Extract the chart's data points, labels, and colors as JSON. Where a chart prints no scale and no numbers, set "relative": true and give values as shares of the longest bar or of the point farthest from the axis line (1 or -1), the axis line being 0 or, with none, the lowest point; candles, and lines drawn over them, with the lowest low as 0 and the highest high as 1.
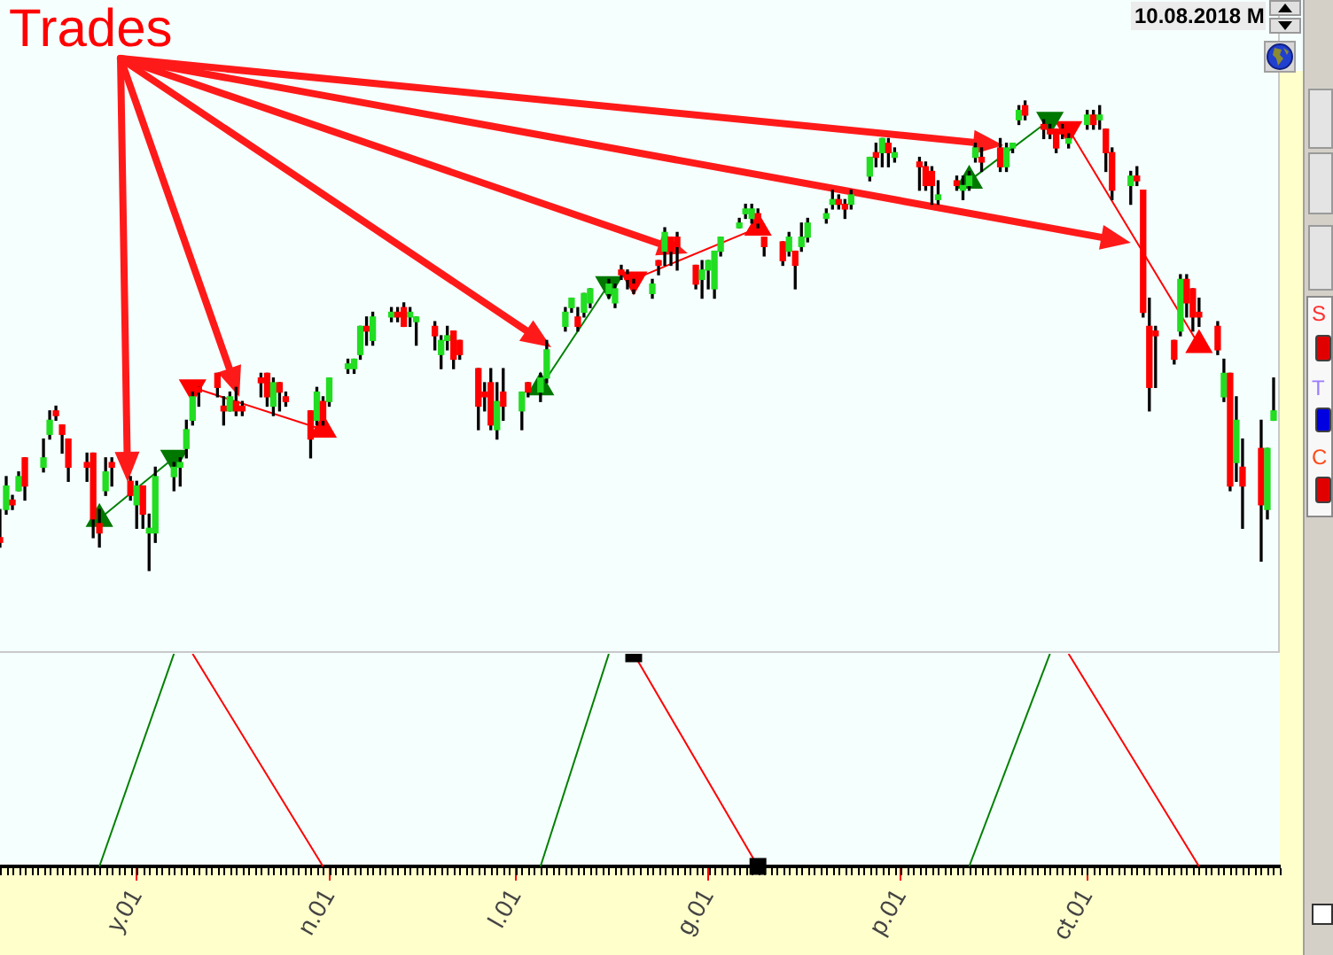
{
  "chart_data": [
    {
      "type": "candlestick",
      "relative": true,
      "xlim": [
        "--04-09",
        "--11-01"
      ],
      "tick_labels": false,
      "annotations": [
        "Trades",
        "10.08.2018 M",
        "S",
        "T",
        "C"
      ],
      "x": [
        "--04-09",
        "--04-10",
        "--04-11",
        "--04-12",
        "--04-13",
        "--04-16",
        "--04-17",
        "--04-18",
        "--04-19",
        "--04-20",
        "--04-23",
        "--04-24",
        "--04-25",
        "--04-26",
        "--04-27",
        "--04-30",
        "--05-01",
        "--05-02",
        "--05-03",
        "--05-04",
        "--05-07",
        "--05-08",
        "--05-09",
        "--05-10",
        "--05-11",
        "--05-14",
        "--05-15",
        "--05-16",
        "--05-17",
        "--05-18",
        "--05-21",
        "--05-22",
        "--05-23",
        "--05-24",
        "--05-25",
        "--05-29",
        "--05-30",
        "--05-31",
        "--06-01",
        "--06-04",
        "--06-05",
        "--06-06",
        "--06-07",
        "--06-08",
        "--06-11",
        "--06-12",
        "--06-13",
        "--06-14",
        "--06-15",
        "--06-18",
        "--06-19",
        "--06-20",
        "--06-21",
        "--06-22",
        "--06-25",
        "--06-26",
        "--06-27",
        "--06-28",
        "--06-29",
        "--07-02",
        "--07-03",
        "--07-05",
        "--07-06",
        "--07-09",
        "--07-10",
        "--07-11",
        "--07-12",
        "--07-13",
        "--07-16",
        "--07-17",
        "--07-18",
        "--07-19",
        "--07-20",
        "--07-23",
        "--07-24",
        "--07-25",
        "--07-26",
        "--07-27",
        "--07-30",
        "--07-31",
        "--08-01",
        "--08-02",
        "--08-03",
        "--08-06",
        "--08-07",
        "--08-08",
        "--08-09",
        "--08-10",
        "--08-13",
        "--08-14",
        "--08-15",
        "--08-16",
        "--08-17",
        "--08-20",
        "--08-21",
        "--08-22",
        "--08-23",
        "--08-24",
        "--08-27",
        "--08-28",
        "--08-29",
        "--08-30",
        "--08-31",
        "--09-04",
        "--09-05",
        "--09-06",
        "--09-07",
        "--09-10",
        "--09-11",
        "--09-12",
        "--09-13",
        "--09-14",
        "--09-17",
        "--09-18",
        "--09-19",
        "--09-20",
        "--09-21",
        "--09-24",
        "--09-25",
        "--09-26",
        "--09-27",
        "--09-28",
        "--10-01",
        "--10-02",
        "--10-03",
        "--10-04",
        "--10-05",
        "--10-08",
        "--10-09",
        "--10-10",
        "--10-11",
        "--10-12",
        "--10-15",
        "--10-16",
        "--10-17",
        "--10-18",
        "--10-19",
        "--10-22",
        "--10-23",
        "--10-24",
        "--10-25",
        "--10-26",
        "--10-29",
        "--10-30",
        "--10-31"
      ],
      "ohlc": [
        [
          0.07,
          0.13,
          0.05,
          0.06
        ],
        [
          0.13,
          0.2,
          0.12,
          0.18
        ],
        [
          0.15,
          0.16,
          0.13,
          0.14
        ],
        [
          0.17,
          0.21,
          0.17,
          0.2
        ],
        [
          0.24,
          0.24,
          0.15,
          0.18
        ],
        [
          0.22,
          0.28,
          0.21,
          0.24
        ],
        [
          0.29,
          0.34,
          0.28,
          0.32
        ],
        [
          0.34,
          0.35,
          0.32,
          0.33
        ],
        [
          0.31,
          0.31,
          0.25,
          0.29
        ],
        [
          0.28,
          0.28,
          0.19,
          0.22
        ],
        [
          0.23,
          0.25,
          0.19,
          0.22
        ],
        [
          0.25,
          0.25,
          0.07,
          0.11
        ],
        [
          0.1,
          0.13,
          0.05,
          0.08
        ],
        [
          0.17,
          0.24,
          0.16,
          0.21
        ],
        [
          0.23,
          0.24,
          0.18,
          0.22
        ],
        [
          0.19,
          0.2,
          0.15,
          0.16
        ],
        [
          0.14,
          0.19,
          0.09,
          0.18
        ],
        [
          0.18,
          0.18,
          0.09,
          0.12
        ],
        [
          0.08,
          0.12,
          0,
          0.09
        ],
        [
          0.08,
          0.22,
          0.06,
          0.2
        ],
        [
          0.2,
          0.23,
          0.17,
          0.22
        ],
        [
          0.22,
          0.24,
          0.18,
          0.23
        ],
        [
          0.26,
          0.32,
          0.24,
          0.3
        ],
        [
          0.32,
          0.38,
          0.31,
          0.37
        ],
        [
          0.39,
          0.39,
          0.35,
          0.38
        ],
        [
          0.42,
          0.42,
          0.37,
          0.39
        ],
        [
          0.35,
          0.37,
          0.31,
          0.34
        ],
        [
          0.34,
          0.38,
          0.34,
          0.37
        ],
        [
          0.36,
          0.39,
          0.33,
          0.34
        ],
        [
          0.35,
          0.36,
          0.33,
          0.34
        ],
        [
          0.41,
          0.42,
          0.37,
          0.4
        ],
        [
          0.42,
          0.42,
          0.35,
          0.37
        ],
        [
          0.35,
          0.41,
          0.33,
          0.4
        ],
        [
          0.4,
          0.4,
          0.34,
          0.38
        ],
        [
          0.37,
          0.38,
          0.35,
          0.36
        ],
        [
          0.34,
          0.34,
          0.24,
          0.28
        ],
        [
          0.32,
          0.39,
          0.31,
          0.38
        ],
        [
          0.36,
          0.37,
          0.31,
          0.32
        ],
        [
          0.36,
          0.41,
          0.35,
          0.41
        ],
        [
          0.43,
          0.45,
          0.42,
          0.44
        ],
        [
          0.43,
          0.45,
          0.42,
          0.45
        ],
        [
          0.46,
          0.52,
          0.45,
          0.52
        ],
        [
          0.52,
          0.54,
          0.48,
          0.51
        ],
        [
          0.49,
          0.55,
          0.48,
          0.54
        ],
        [
          0.54,
          0.56,
          0.53,
          0.55
        ],
        [
          0.55,
          0.56,
          0.53,
          0.54
        ],
        [
          0.56,
          0.57,
          0.52,
          0.52
        ],
        [
          0.54,
          0.56,
          0.52,
          0.55
        ],
        [
          0.53,
          0.54,
          0.48,
          0.54
        ],
        [
          0.52,
          0.53,
          0.47,
          0.5
        ],
        [
          0.46,
          0.5,
          0.43,
          0.49
        ],
        [
          0.49,
          0.52,
          0.47,
          0.5
        ],
        [
          0.51,
          0.51,
          0.43,
          0.45
        ],
        [
          0.49,
          0.49,
          0.45,
          0.46
        ],
        [
          0.43,
          0.43,
          0.3,
          0.35
        ],
        [
          0.38,
          0.4,
          0.34,
          0.37
        ],
        [
          0.4,
          0.43,
          0.3,
          0.31
        ],
        [
          0.3,
          0.4,
          0.28,
          0.36
        ],
        [
          0.38,
          0.43,
          0.32,
          0.35
        ],
        [
          0.34,
          0.38,
          0.3,
          0.38
        ],
        [
          0.4,
          0.4,
          0.37,
          0.38
        ],
        [
          0.38,
          0.42,
          0.36,
          0.41
        ],
        [
          0.41,
          0.49,
          0.4,
          0.47
        ],
        [
          0.52,
          0.56,
          0.51,
          0.55
        ],
        [
          0.56,
          0.58,
          0.55,
          0.58
        ],
        [
          0.54,
          0.56,
          0.51,
          0.52
        ],
        [
          0.55,
          0.59,
          0.54,
          0.59
        ],
        [
          0.57,
          0.6,
          0.56,
          0.6
        ],
        [
          0.59,
          0.62,
          0.58,
          0.61
        ],
        [
          0.57,
          0.61,
          0.56,
          0.6
        ],
        [
          0.64,
          0.65,
          0.62,
          0.63
        ],
        [
          0.63,
          0.64,
          0.6,
          0.62
        ],
        [
          0.61,
          0.62,
          0.59,
          0.6
        ],
        [
          0.59,
          0.62,
          0.58,
          0.61
        ],
        [
          0.66,
          0.66,
          0.63,
          0.65
        ],
        [
          0.68,
          0.73,
          0.65,
          0.72
        ],
        [
          0.71,
          0.71,
          0.65,
          0.68
        ],
        [
          0.71,
          0.72,
          0.64,
          0.69
        ],
        [
          0.65,
          0.65,
          0.6,
          0.61
        ],
        [
          0.62,
          0.66,
          0.58,
          0.64
        ],
        [
          0.64,
          0.66,
          0.6,
          0.66
        ],
        [
          0.6,
          0.68,
          0.58,
          0.68
        ],
        [
          0.68,
          0.71,
          0.67,
          0.71
        ],
        [
          0.73,
          0.75,
          0.73,
          0.74
        ],
        [
          0.76,
          0.78,
          0.75,
          0.77
        ],
        [
          0.75,
          0.78,
          0.74,
          0.77
        ],
        [
          0.76,
          0.77,
          0.73,
          0.74
        ],
        [
          0.71,
          0.71,
          0.67,
          0.69
        ],
        [
          0.7,
          0.7,
          0.65,
          0.66
        ],
        [
          0.68,
          0.72,
          0.67,
          0.71
        ],
        [
          0.68,
          0.68,
          0.6,
          0.65
        ],
        [
          0.69,
          0.74,
          0.68,
          0.71
        ],
        [
          0.71,
          0.75,
          0.7,
          0.74
        ],
        [
          0.75,
          0.77,
          0.74,
          0.76
        ],
        [
          0.78,
          0.81,
          0.77,
          0.79
        ],
        [
          0.79,
          0.8,
          0.77,
          0.78
        ],
        [
          0.78,
          0.79,
          0.75,
          0.77
        ],
        [
          0.78,
          0.81,
          0.77,
          0.8
        ],
        [
          0.84,
          0.88,
          0.83,
          0.88
        ],
        [
          0.89,
          0.91,
          0.86,
          0.88
        ],
        [
          0.89,
          0.92,
          0.86,
          0.92
        ],
        [
          0.91,
          0.92,
          0.86,
          0.89
        ],
        [
          0.88,
          0.9,
          0.87,
          0.89
        ],
        [
          0.87,
          0.88,
          0.81,
          0.86
        ],
        [
          0.86,
          0.87,
          0.81,
          0.82
        ],
        [
          0.85,
          0.86,
          0.78,
          0.82
        ],
        [
          0.79,
          0.83,
          0.78,
          0.8
        ],
        [
          0.83,
          0.84,
          0.81,
          0.82
        ],
        [
          0.81,
          0.84,
          0.79,
          0.82
        ],
        [
          0.82,
          0.85,
          0.81,
          0.84
        ],
        [
          0.88,
          0.91,
          0.87,
          0.9
        ],
        [
          0.88,
          0.9,
          0.85,
          0.87
        ],
        [
          0.9,
          0.92,
          0.85,
          0.86
        ],
        [
          0.86,
          0.91,
          0.85,
          0.9
        ],
        [
          0.9,
          0.91,
          0.89,
          0.91
        ],
        [
          0.96,
          0.99,
          0.95,
          0.98
        ],
        [
          0.99,
          1,
          0.96,
          0.97
        ],
        [
          0.95,
          0.96,
          0.92,
          0.94
        ],
        [
          0.94,
          0.95,
          0.92,
          0.93
        ],
        [
          0.94,
          0.94,
          0.89,
          0.9
        ],
        [
          0.94,
          0.95,
          0.92,
          0.93
        ],
        [
          0.91,
          0.93,
          0.9,
          0.92
        ],
        [
          0.95,
          0.98,
          0.94,
          0.97
        ],
        [
          0.97,
          0.98,
          0.94,
          0.95
        ],
        [
          0.96,
          0.99,
          0.94,
          0.97
        ],
        [
          0.94,
          0.94,
          0.85,
          0.89
        ],
        [
          0.89,
          0.9,
          0.79,
          0.81
        ],
        [
          0.82,
          0.85,
          0.78,
          0.84
        ],
        [
          0.84,
          0.86,
          0.82,
          0.83
        ],
        [
          0.81,
          0.81,
          0.54,
          0.55
        ],
        [
          0.52,
          0.58,
          0.34,
          0.39
        ],
        [
          0.51,
          0.52,
          0.39,
          0.5
        ],
        [
          0.49,
          0.49,
          0.44,
          0.45
        ],
        [
          0.51,
          0.63,
          0.5,
          0.62
        ],
        [
          0.62,
          0.63,
          0.54,
          0.57
        ],
        [
          0.6,
          0.6,
          0.51,
          0.54
        ],
        [
          0.55,
          0.58,
          0.52,
          0.54
        ],
        [
          0.52,
          0.53,
          0.46,
          0.47
        ],
        [
          0.37,
          0.45,
          0.36,
          0.42
        ],
        [
          0.42,
          0.42,
          0.17,
          0.18
        ],
        [
          0.23,
          0.37,
          0.19,
          0.32
        ],
        [
          0.22,
          0.28,
          0.09,
          0.18
        ],
        [
          0.26,
          0.32,
          0.02,
          0.14
        ],
        [
          0.13,
          0.26,
          0.11,
          0.26
        ],
        [
          0.32,
          0.41,
          0.32,
          0.34
        ]
      ],
      "series": [
        {
          "type": "line",
          "color": "#008000",
          "x": [
            "--04-25",
            "--05-07"
          ],
          "values": [
            0.11,
            0.24
          ]
        },
        {
          "type": "line",
          "color": "#ff0000",
          "x": [
            "--05-10",
            "--05-31"
          ],
          "values": [
            0.39,
            0.3
          ]
        },
        {
          "type": "line",
          "color": "#008000",
          "x": [
            "--07-05",
            "--07-16"
          ],
          "values": [
            0.39,
            0.61
          ]
        },
        {
          "type": "line",
          "color": "#ff0000",
          "x": [
            "--07-20",
            "--08-09"
          ],
          "values": [
            0.62,
            0.73
          ]
        },
        {
          "type": "line",
          "color": "#008000",
          "x": [
            "--09-12",
            "--09-25"
          ],
          "values": [
            0.83,
            0.96
          ]
        },
        {
          "type": "line",
          "color": "#ff0000",
          "x": [
            "--09-28",
            "--10-19"
          ],
          "values": [
            0.94,
            0.48
          ]
        },
        {
          "type": "scatter",
          "marker": "triangle",
          "color": "#007800",
          "x": [
            "--04-25",
            "--07-05",
            "--09-12"
          ],
          "values": [
            0.11,
            0.39,
            0.83
          ]
        },
        {
          "type": "scatter",
          "marker": "triangle_down",
          "color": "#007800",
          "x": [
            "--05-07",
            "--07-16",
            "--09-25"
          ],
          "values": [
            0.24,
            0.61,
            0.96
          ]
        },
        {
          "type": "scatter",
          "marker": "triangle_down",
          "color": "#ff0000",
          "x": [
            "--05-10",
            "--07-20",
            "--09-28"
          ],
          "values": [
            0.39,
            0.62,
            0.94
          ]
        },
        {
          "type": "scatter",
          "marker": "triangle",
          "color": "#ff0000",
          "x": [
            "--05-31",
            "--08-09",
            "--10-19"
          ],
          "values": [
            0.3,
            0.73,
            0.48
          ]
        }
      ]
    },
    {
      "type": "line",
      "relative": true,
      "xlim": [
        "--04-09",
        "--11-01"
      ],
      "tick_labels": "x",
      "xticks": [
        {
          "value": "--05-01",
          "label": "y.01"
        },
        {
          "value": "--06-01",
          "label": "n.01"
        },
        {
          "value": "--07-01",
          "label": "l.01"
        },
        {
          "value": "--08-01",
          "label": "g.01"
        },
        {
          "value": "--09-01",
          "label": "p.01"
        },
        {
          "value": "--10-01",
          "label": "ct.01"
        }
      ],
      "series": [
        {
          "type": "line",
          "color": "#008000",
          "x": [
            "--04-25",
            "--05-07"
          ],
          "values": [
            0,
            1
          ]
        },
        {
          "type": "line",
          "color": "#ff0000",
          "x": [
            "--05-10",
            "--05-31"
          ],
          "values": [
            1,
            0
          ]
        },
        {
          "type": "line",
          "color": "#008000",
          "x": [
            "--07-05",
            "--07-16"
          ],
          "values": [
            0,
            1
          ]
        },
        {
          "type": "line",
          "color": "#ff0000",
          "x": [
            "--07-20",
            "--08-09"
          ],
          "values": [
            1,
            0
          ]
        },
        {
          "type": "line",
          "color": "#008000",
          "x": [
            "--09-12",
            "--09-25"
          ],
          "values": [
            0,
            1
          ]
        },
        {
          "type": "line",
          "color": "#ff0000",
          "x": [
            "--09-28",
            "--10-19"
          ],
          "values": [
            1,
            0
          ]
        },
        {
          "type": "scatter",
          "marker": "square",
          "color": "#000000",
          "x": [
            "--07-20",
            "--08-09"
          ],
          "values": [
            1,
            0
          ]
        }
      ]
    }
  ]
}
